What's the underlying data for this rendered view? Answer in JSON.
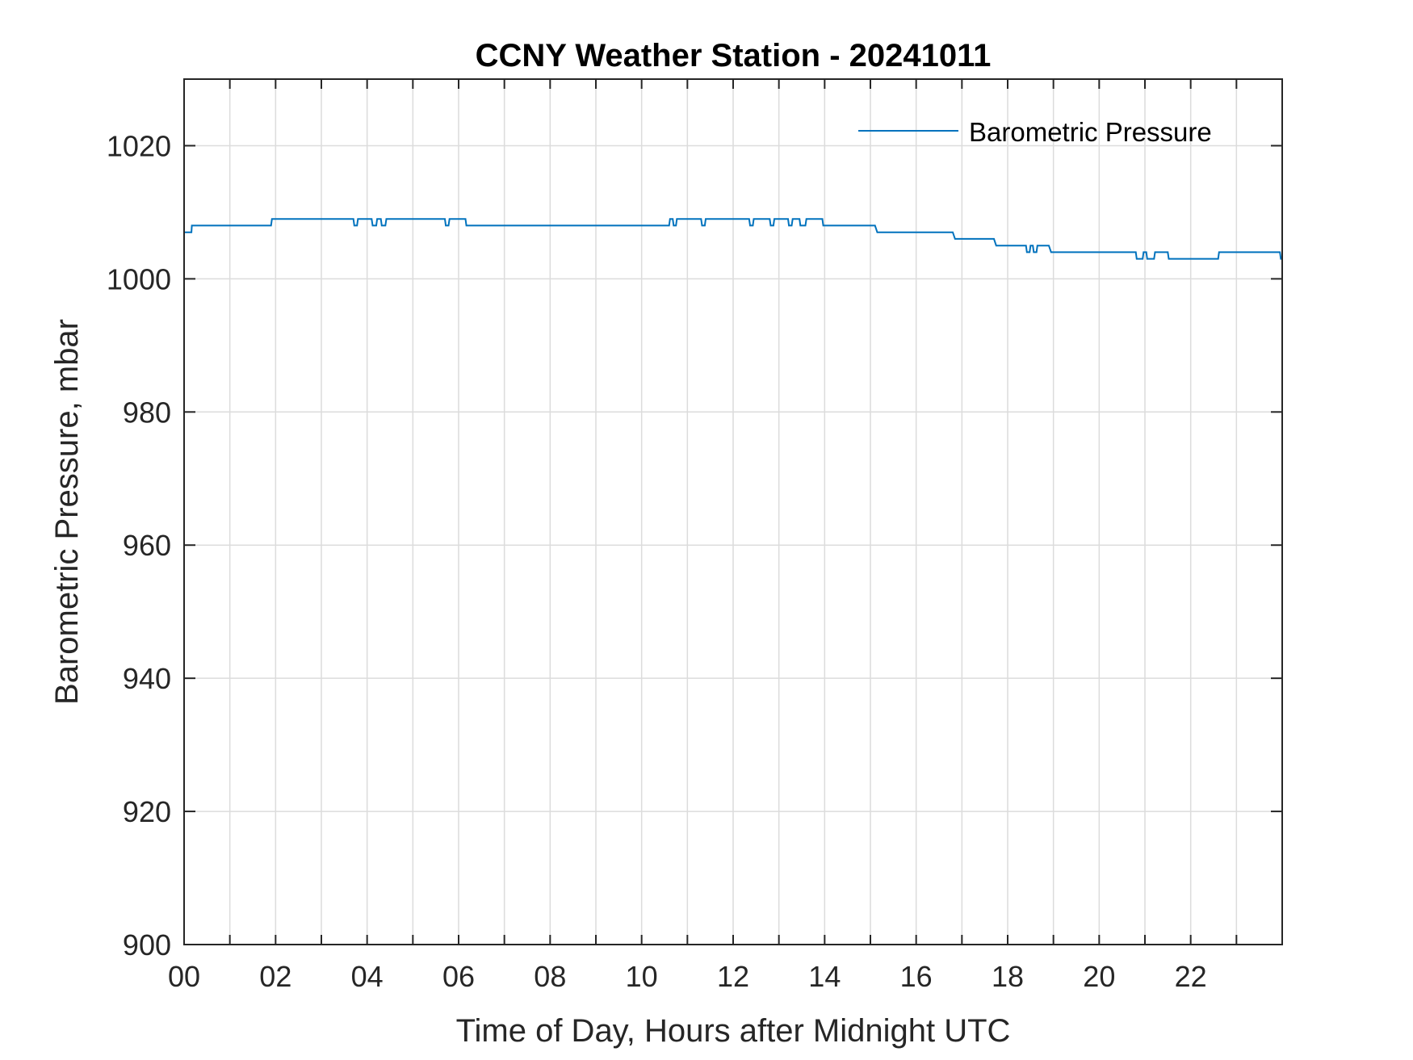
{
  "chart_data": {
    "type": "line",
    "title": "CCNY Weather Station - 20241011",
    "xlabel": "Time of Day, Hours after Midnight UTC",
    "ylabel": "Barometric Pressure, mbar",
    "xlim": [
      0,
      24
    ],
    "ylim": [
      900,
      1030
    ],
    "x_ticks": [
      0,
      2,
      4,
      6,
      8,
      10,
      12,
      14,
      16,
      18,
      20,
      22
    ],
    "x_tick_labels": [
      "00",
      "02",
      "04",
      "06",
      "08",
      "10",
      "12",
      "14",
      "16",
      "18",
      "20",
      "22"
    ],
    "y_ticks": [
      900,
      920,
      940,
      960,
      980,
      1000,
      1020
    ],
    "y_tick_labels": [
      "900",
      "920",
      "940",
      "960",
      "980",
      "1000",
      "1020"
    ],
    "grid": true,
    "legend_position": "top-right",
    "series": [
      {
        "name": "Barometric Pressure",
        "color": "#0072BD",
        "x": [
          0.0,
          0.16,
          0.17,
          1.9,
          1.92,
          3.7,
          3.72,
          3.78,
          3.8,
          4.1,
          4.12,
          4.2,
          4.22,
          4.3,
          4.32,
          4.4,
          4.42,
          5.7,
          5.72,
          5.78,
          5.8,
          6.15,
          6.17,
          6.23,
          6.25,
          10.6,
          10.62,
          10.68,
          10.7,
          10.75,
          10.77,
          10.83,
          10.85,
          11.3,
          11.32,
          11.38,
          11.4,
          12.35,
          12.37,
          12.43,
          12.45,
          12.8,
          12.82,
          12.88,
          12.9,
          13.2,
          13.22,
          13.28,
          13.3,
          13.45,
          13.47,
          13.58,
          13.6,
          13.95,
          13.97,
          15.1,
          15.15,
          16.8,
          16.85,
          17.7,
          17.75,
          18.4,
          18.42,
          18.48,
          18.5,
          18.55,
          18.57,
          18.63,
          18.65,
          18.9,
          18.95,
          20.8,
          20.82,
          20.95,
          20.97,
          21.03,
          21.05,
          21.2,
          21.22,
          21.5,
          21.52,
          22.6,
          22.62,
          23.95,
          23.97,
          24.0
        ],
        "y": [
          1007,
          1007,
          1008,
          1008,
          1009,
          1009,
          1008,
          1008,
          1009,
          1009,
          1008,
          1008,
          1009,
          1009,
          1008,
          1008,
          1009,
          1009,
          1008,
          1008,
          1009,
          1009,
          1008,
          1008,
          1008,
          1008,
          1009,
          1009,
          1008,
          1008,
          1009,
          1009,
          1009,
          1009,
          1008,
          1008,
          1009,
          1009,
          1008,
          1008,
          1009,
          1009,
          1008,
          1008,
          1009,
          1009,
          1008,
          1008,
          1009,
          1009,
          1008,
          1008,
          1009,
          1009,
          1008,
          1008,
          1007,
          1007,
          1006,
          1006,
          1005,
          1005,
          1004,
          1004,
          1005,
          1005,
          1004,
          1004,
          1005,
          1005,
          1004,
          1004,
          1003,
          1003,
          1004,
          1004,
          1003,
          1003,
          1004,
          1004,
          1003,
          1003,
          1004,
          1004,
          1003,
          1003
        ]
      }
    ]
  }
}
